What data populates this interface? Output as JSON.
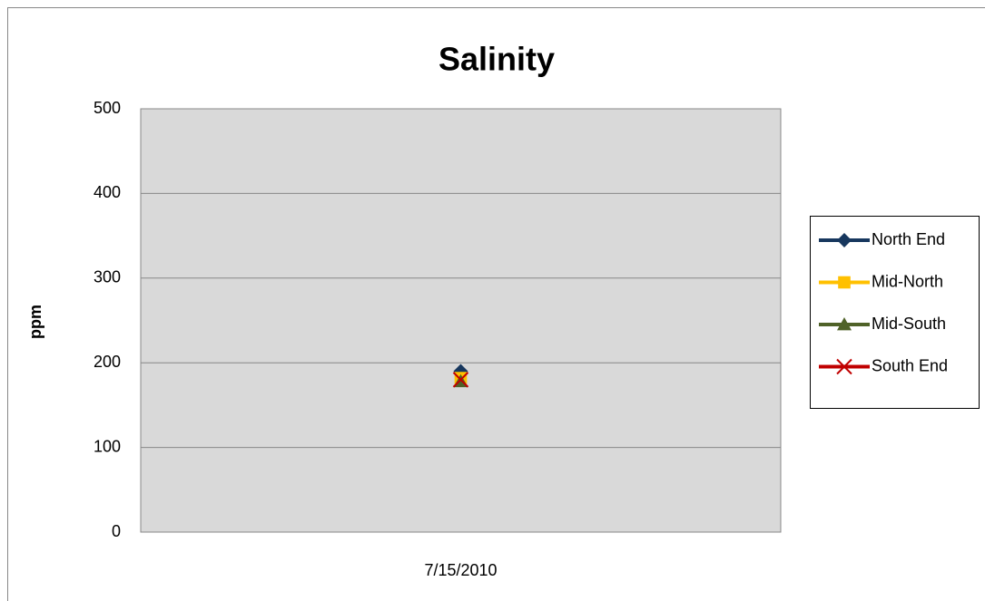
{
  "chart_data": {
    "type": "line",
    "title": "Salinity",
    "y_label": "ppm",
    "categories": [
      "7/15/2010"
    ],
    "series": [
      {
        "name": "North End",
        "color": "#17375e",
        "marker": "diamond",
        "values": [
          190
        ]
      },
      {
        "name": "Mid-North",
        "color": "#ffc000",
        "marker": "square",
        "values": [
          182
        ]
      },
      {
        "name": "Mid-South",
        "color": "#4f6228",
        "marker": "triangle",
        "values": [
          178
        ]
      },
      {
        "name": "South End",
        "color": "#c00000",
        "marker": "x",
        "values": [
          180
        ]
      }
    ],
    "ylim": [
      0,
      500
    ],
    "yticks": [
      0,
      100,
      200,
      300,
      400,
      500
    ],
    "grid": true,
    "legend": "right"
  }
}
